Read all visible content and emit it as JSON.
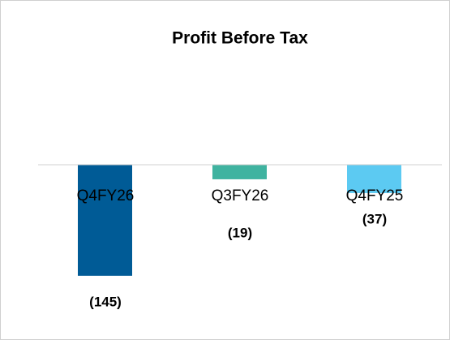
{
  "chart_data": {
    "type": "bar",
    "title": "Profit Before Tax",
    "categories": [
      "Q4FY26",
      "Q3FY26",
      "Q4FY25"
    ],
    "values": [
      -145,
      -19,
      -37
    ],
    "value_labels": [
      "(145)",
      "(19)",
      "(37)"
    ],
    "colors": [
      "#005b96",
      "#3fb3a0",
      "#5ccaf2"
    ],
    "ylim": [
      -160,
      0
    ]
  }
}
